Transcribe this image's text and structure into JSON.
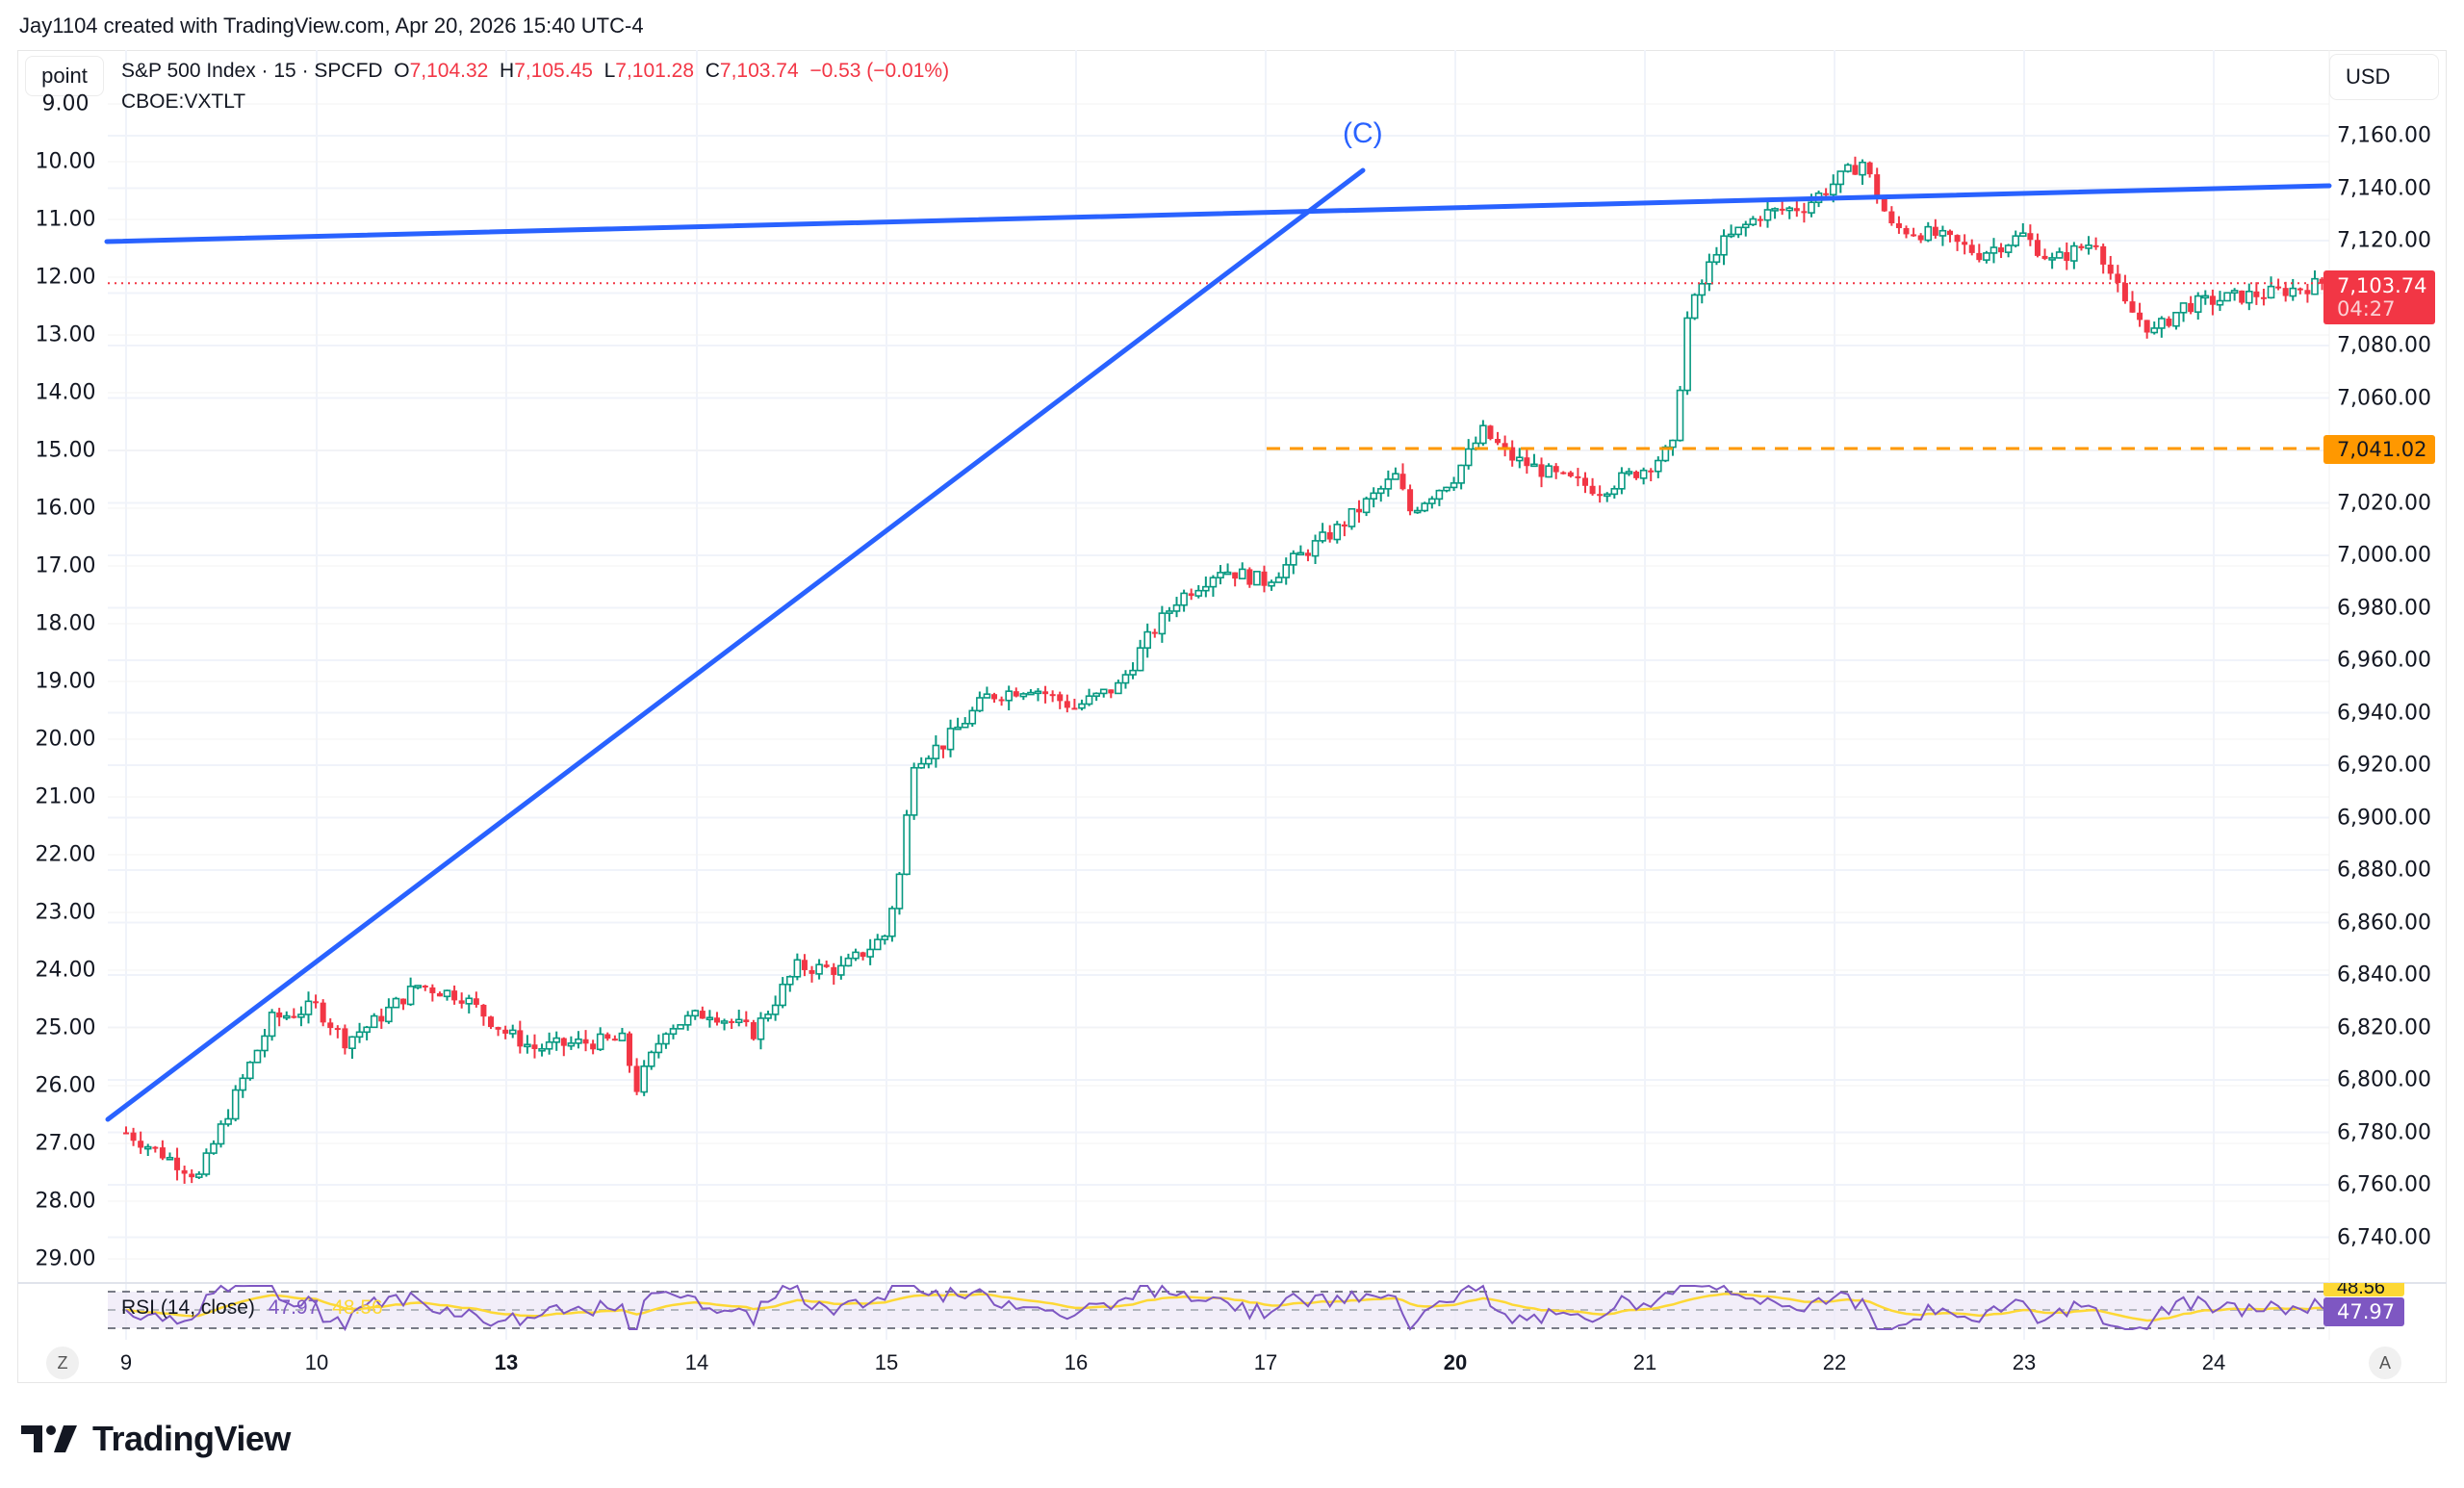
{
  "caption": "Jay1104 created with TradingView.com, Apr 20, 2026 15:40 UTC-4",
  "toolbar": {
    "left_scale_button": "point",
    "right_scale_button": "USD"
  },
  "legend": {
    "symbol": "S&P 500 Index · 15 · SPCFD",
    "open_label": "O",
    "open": "7,104.32",
    "high_label": "H",
    "high": "7,105.45",
    "low_label": "L",
    "low": "7,101.28",
    "close_label": "C",
    "close": "7,103.74",
    "change": "−0.53 (−0.01%)",
    "overlay_symbol": "CBOE:VXTLT"
  },
  "price_badge": {
    "price": "7,103.74",
    "countdown": "04:27"
  },
  "level_badge": {
    "price": "7,041.02"
  },
  "wave_label": "(C)",
  "rsi": {
    "label": "RSI (14, close)",
    "value": "47.97",
    "ma_value": "48.56",
    "badge_value": "47.97",
    "ma_badge_value": "48.56"
  },
  "buttons": {
    "z": "Z",
    "a": "A"
  },
  "logo": "TradingView",
  "colors": {
    "up": "#089981",
    "down": "#f23645",
    "trendline": "#2962ff",
    "level": "#ff9800",
    "rsi": "#7e57c2",
    "rsi_ma": "#fdd835"
  },
  "chart_data": {
    "type": "candlestick",
    "title": "S&P 500 Index · 15 · SPCFD",
    "xlabel": "",
    "ylabel": "USD",
    "ylim": [
      6730,
      7170
    ],
    "right_axis_ticks": [
      "7,160.00",
      "7,140.00",
      "7,120.00",
      "7,080.00",
      "7,060.00",
      "7,020.00",
      "7,000.00",
      "6,980.00",
      "6,960.00",
      "6,940.00",
      "6,920.00",
      "6,900.00",
      "6,880.00",
      "6,860.00",
      "6,840.00",
      "6,820.00",
      "6,800.00",
      "6,780.00",
      "6,760.00",
      "6,740.00"
    ],
    "left_axis_ticks": [
      "9.00",
      "10.00",
      "11.00",
      "12.00",
      "13.00",
      "14.00",
      "15.00",
      "16.00",
      "17.00",
      "18.00",
      "19.00",
      "20.00",
      "21.00",
      "22.00",
      "23.00",
      "24.00",
      "25.00",
      "26.00",
      "27.00",
      "28.00",
      "29.00"
    ],
    "x_ticks": [
      {
        "label": "9",
        "bold": false
      },
      {
        "label": "10",
        "bold": false
      },
      {
        "label": "13",
        "bold": true
      },
      {
        "label": "14",
        "bold": false
      },
      {
        "label": "15",
        "bold": false
      },
      {
        "label": "16",
        "bold": false
      },
      {
        "label": "17",
        "bold": false
      },
      {
        "label": "20",
        "bold": true
      },
      {
        "label": "21",
        "bold": false
      },
      {
        "label": "22",
        "bold": false
      },
      {
        "label": "23",
        "bold": false
      },
      {
        "label": "24",
        "bold": false
      }
    ],
    "close_path": [
      {
        "x": 0,
        "p": 6780
      },
      {
        "x": 6,
        "p": 6770
      },
      {
        "x": 10,
        "p": 6763
      },
      {
        "x": 16,
        "p": 6800
      },
      {
        "x": 20,
        "p": 6823
      },
      {
        "x": 26,
        "p": 6828
      },
      {
        "x": 30,
        "p": 6815
      },
      {
        "x": 34,
        "p": 6822
      },
      {
        "x": 40,
        "p": 6836
      },
      {
        "x": 46,
        "p": 6832
      },
      {
        "x": 52,
        "p": 6818
      },
      {
        "x": 56,
        "p": 6812
      },
      {
        "x": 62,
        "p": 6814
      },
      {
        "x": 68,
        "p": 6815
      },
      {
        "x": 70,
        "p": 6797
      },
      {
        "x": 74,
        "p": 6820
      },
      {
        "x": 80,
        "p": 6826
      },
      {
        "x": 86,
        "p": 6818
      },
      {
        "x": 92,
        "p": 6843
      },
      {
        "x": 98,
        "p": 6842
      },
      {
        "x": 104,
        "p": 6855
      },
      {
        "x": 106,
        "p": 6878
      },
      {
        "x": 108,
        "p": 6922
      },
      {
        "x": 112,
        "p": 6928
      },
      {
        "x": 118,
        "p": 6946
      },
      {
        "x": 124,
        "p": 6950
      },
      {
        "x": 130,
        "p": 6942
      },
      {
        "x": 136,
        "p": 6950
      },
      {
        "x": 140,
        "p": 6968
      },
      {
        "x": 144,
        "p": 6983
      },
      {
        "x": 150,
        "p": 6995
      },
      {
        "x": 156,
        "p": 6990
      },
      {
        "x": 160,
        "p": 6998
      },
      {
        "x": 166,
        "p": 7010
      },
      {
        "x": 170,
        "p": 7020
      },
      {
        "x": 174,
        "p": 7030
      },
      {
        "x": 176,
        "p": 7017
      },
      {
        "x": 182,
        "p": 7030
      },
      {
        "x": 186,
        "p": 7047
      },
      {
        "x": 190,
        "p": 7037
      },
      {
        "x": 196,
        "p": 7030
      },
      {
        "x": 202,
        "p": 7025
      },
      {
        "x": 208,
        "p": 7033
      },
      {
        "x": 212,
        "p": 7041
      },
      {
        "x": 214,
        "p": 7090
      },
      {
        "x": 218,
        "p": 7117
      },
      {
        "x": 224,
        "p": 7130
      },
      {
        "x": 230,
        "p": 7133
      },
      {
        "x": 236,
        "p": 7146
      },
      {
        "x": 238,
        "p": 7150
      },
      {
        "x": 242,
        "p": 7125
      },
      {
        "x": 248,
        "p": 7122
      },
      {
        "x": 254,
        "p": 7115
      },
      {
        "x": 260,
        "p": 7122
      },
      {
        "x": 264,
        "p": 7112
      },
      {
        "x": 270,
        "p": 7120
      },
      {
        "x": 274,
        "p": 7095
      },
      {
        "x": 278,
        "p": 7085
      },
      {
        "x": 282,
        "p": 7095
      },
      {
        "x": 288,
        "p": 7098
      },
      {
        "x": 294,
        "p": 7100
      },
      {
        "x": 300,
        "p": 7103
      },
      {
        "x": 304,
        "p": 7106
      },
      {
        "x": 306,
        "p": 7103.74
      }
    ]
  }
}
